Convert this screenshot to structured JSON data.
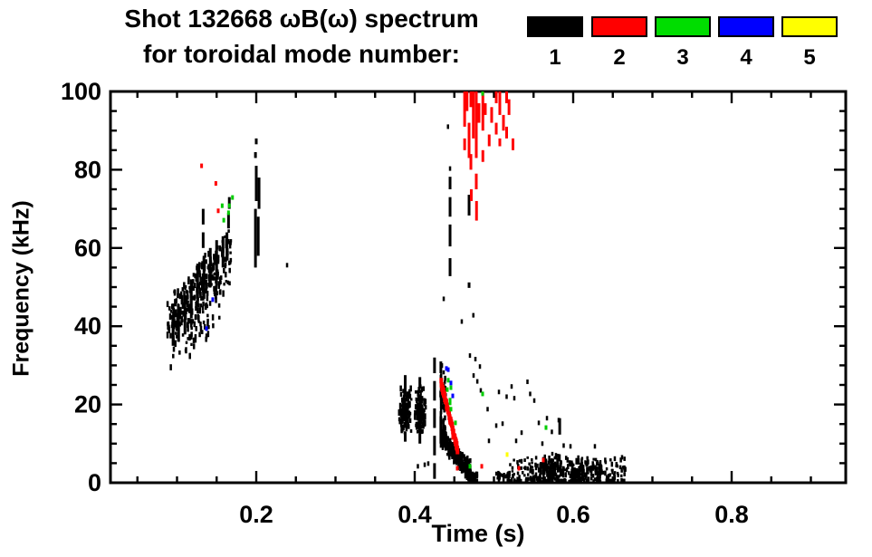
{
  "header": {
    "title": "Shot 132668 ωB(ω) spectrum",
    "subtitle": "for toroidal mode number:"
  },
  "legend": {
    "items": [
      {
        "label": "1",
        "color": "#000000"
      },
      {
        "label": "2",
        "color": "#ff0000"
      },
      {
        "label": "3",
        "color": "#00dd00"
      },
      {
        "label": "4",
        "color": "#0000ff"
      },
      {
        "label": "5",
        "color": "#ffff00"
      }
    ]
  },
  "chart_data": {
    "type": "scatter",
    "title": "Shot 132668 ωB(ω) spectrum for toroidal mode number: 1-5",
    "xlabel": "Time (s)",
    "ylabel": "Frequency (kHz)",
    "grid": false,
    "legend_position": "top-right",
    "x_axis": {
      "range": [
        0.016,
        0.944
      ],
      "major": [
        0.2,
        0.4,
        0.6,
        0.8
      ],
      "major_labels": [
        "0.2",
        "0.4",
        "0.6",
        "0.8"
      ],
      "minor_step": 0.05
    },
    "y_axis": {
      "range": [
        0,
        100
      ],
      "major": [
        0,
        20,
        40,
        60,
        80,
        100
      ],
      "major_labels": [
        "0",
        "20",
        "40",
        "60",
        "80",
        "100"
      ],
      "minor_step": 5
    },
    "series": [
      {
        "name": "n=1",
        "color": "#000000",
        "points": [
          [
            0.2389,
            55.6
          ],
          [
            0.442,
            91
          ],
          [
            0.4446,
            80.3
          ],
          [
            0.4366,
            47
          ],
          [
            0.4594,
            41.2
          ],
          [
            0.474,
            42.8
          ],
          [
            0.4697,
            32.5
          ],
          [
            0.4766,
            31.6
          ],
          [
            0.4823,
            29.7
          ],
          [
            0.4743,
            27.4
          ],
          [
            0.479,
            25.9
          ],
          [
            0.4834,
            23.6
          ],
          [
            0.492,
            18.8
          ],
          [
            0.4937,
            10.7
          ],
          [
            0.5029,
            14.6
          ],
          [
            0.5063,
            23.2
          ],
          [
            0.5109,
            15.1
          ],
          [
            0.516,
            22.0
          ],
          [
            0.5223,
            24.6
          ],
          [
            0.5257,
            21.6
          ],
          [
            0.528,
            10.7
          ],
          [
            0.5349,
            12.8
          ],
          [
            0.5423,
            25.8
          ],
          [
            0.5457,
            22.7
          ],
          [
            0.5509,
            21.0
          ],
          [
            0.5566,
            15.3
          ],
          [
            0.5611,
            10.0
          ],
          [
            0.5669,
            16.5
          ],
          [
            0.5731,
            13.0
          ],
          [
            0.5817,
            16.0
          ],
          [
            0.588,
            9.5
          ],
          [
            0.5623,
            6.0
          ],
          [
            0.5966,
            9.3
          ],
          [
            0.6274,
            9.3
          ],
          [
            0.6617,
            6.5
          ],
          [
            0.4126,
            4.6
          ],
          [
            0.4171,
            4.9
          ],
          [
            0.404,
            4.2
          ]
        ],
        "segments": [
          [
            0.133,
            60,
            64
          ],
          [
            0.133,
            66,
            70
          ],
          [
            0.165,
            65,
            69
          ],
          [
            0.166,
            70,
            73
          ],
          [
            0.199,
            55,
            70
          ],
          [
            0.2,
            72,
            81
          ],
          [
            0.2025,
            58,
            68
          ],
          [
            0.2035,
            70,
            78
          ],
          [
            0.199,
            83,
            84.5
          ],
          [
            0.2,
            86.5,
            88
          ],
          [
            0.4446,
            52.8,
            57.4
          ],
          [
            0.4446,
            60.4,
            66
          ],
          [
            0.4446,
            68,
            73
          ],
          [
            0.4446,
            75,
            78.2
          ],
          [
            0.4686,
            68.3,
            73.6
          ],
          [
            0.4686,
            49.8,
            51.2
          ],
          [
            0.425,
            1,
            5
          ],
          [
            0.425,
            7,
            12
          ],
          [
            0.425,
            14,
            19
          ],
          [
            0.425,
            21,
            26
          ],
          [
            0.425,
            28,
            32
          ],
          [
            0.433,
            10,
            17
          ],
          [
            0.4335,
            19,
            26
          ],
          [
            0.433,
            28,
            31
          ],
          [
            0.583,
            12.3,
            16.5
          ],
          [
            0.388,
            24,
            27.5
          ],
          [
            0.388,
            10.5,
            13
          ],
          [
            0.4065,
            24,
            27
          ],
          [
            0.4065,
            10,
            12.5
          ],
          [
            0.118,
            42,
            52
          ],
          [
            0.126,
            45,
            56
          ],
          [
            0.134,
            47,
            58
          ],
          [
            0.142,
            50,
            60
          ],
          [
            0.15,
            52,
            62
          ],
          [
            0.11,
            38,
            48
          ],
          [
            0.102,
            36,
            45
          ],
          [
            0.158,
            55,
            63
          ],
          [
            0.163,
            57,
            64
          ],
          [
            0.095,
            35,
            42
          ]
        ],
        "bands": [
          {
            "t": [
              0.088,
              0.168
            ],
            "fc": [
              40,
              58
            ],
            "hw": [
              8,
              8
            ],
            "n": 300,
            "seed": 7
          },
          {
            "t": [
              0.092,
              0.155
            ],
            "fc": [
              33,
              44
            ],
            "hw": [
              5,
              6
            ],
            "n": 45,
            "seed": 11
          },
          {
            "t": [
              0.4325,
              0.4395
            ],
            "fc": [
              20,
              20
            ],
            "hw": [
              11,
              11
            ],
            "n": 55,
            "seed": 19
          },
          {
            "t": [
              0.433,
              0.4705
            ],
            "fc": [
              11.5,
              3
            ],
            "hw": [
              2.5,
              3.2
            ],
            "n": 240,
            "seed": 23
          },
          {
            "t": [
              0.467,
              0.479
            ],
            "fc": [
              1.8,
              1.5
            ],
            "hw": [
              1.8,
              1.5
            ],
            "n": 40,
            "seed": 47
          },
          {
            "t": [
              0.558,
              0.586
            ],
            "fc": [
              4,
              4
            ],
            "hw": [
              4,
              4
            ],
            "n": 80,
            "seed": 31
          },
          {
            "t": [
              0.598,
              0.636
            ],
            "fc": [
              3.2,
              3.2
            ],
            "hw": [
              3.4,
              3.4
            ],
            "n": 90,
            "seed": 37
          },
          {
            "t": [
              0.502,
              0.52
            ],
            "fc": [
              1.5,
              1.5
            ],
            "hw": [
              1.5,
              1.5
            ],
            "n": 20,
            "seed": 41
          }
        ],
        "blobs": [
          {
            "tc": 0.388,
            "fc": 18.5,
            "rt": 0.0085,
            "rf": 6.5,
            "n": 130,
            "seed": 13
          },
          {
            "tc": 0.4065,
            "fc": 18.0,
            "rt": 0.008,
            "rf": 7.0,
            "n": 130,
            "seed": 17
          }
        ],
        "floors": [
          {
            "t": [
              0.518,
              0.666
            ],
            "fmax": 6.5,
            "n": 260,
            "seed": 29
          }
        ]
      },
      {
        "name": "n=2",
        "color": "#ff0000",
        "points": [
          [
            0.131,
            81
          ],
          [
            0.149,
            76.5
          ],
          [
            0.152,
            69.5
          ],
          [
            0.4537,
            3.7
          ],
          [
            0.4846,
            4.2
          ],
          [
            0.5314,
            3.7
          ],
          [
            0.5623,
            5.8
          ]
        ],
        "segments": [
          [
            0.463,
            91,
            100
          ],
          [
            0.463,
            85,
            88
          ],
          [
            0.466,
            95,
            100
          ],
          [
            0.4686,
            83,
            92
          ],
          [
            0.4709,
            96,
            100
          ],
          [
            0.4709,
            80,
            84
          ],
          [
            0.4714,
            72,
            75
          ],
          [
            0.474,
            88,
            100
          ],
          [
            0.4777,
            83,
            100
          ],
          [
            0.4777,
            75,
            79
          ],
          [
            0.478,
            67,
            72
          ],
          [
            0.4811,
            92,
            97
          ],
          [
            0.486,
            90,
            100
          ],
          [
            0.486,
            82,
            85
          ],
          [
            0.4891,
            94,
            97
          ],
          [
            0.494,
            86,
            89
          ],
          [
            0.4971,
            92,
            96
          ],
          [
            0.5029,
            97,
            100
          ],
          [
            0.5029,
            89,
            92
          ],
          [
            0.5074,
            94,
            100
          ],
          [
            0.5074,
            86,
            88
          ],
          [
            0.512,
            90,
            94
          ],
          [
            0.516,
            97,
            100
          ],
          [
            0.516,
            88,
            91
          ],
          [
            0.519,
            94,
            98
          ],
          [
            0.524,
            85,
            88
          ],
          [
            0.448,
            11,
            13.5
          ]
        ],
        "slants": [
          {
            "from": [
              0.4335,
              25.5
            ],
            "to": [
              0.454,
              8.5
            ],
            "w": 4,
            "n": 60,
            "seed": 43
          }
        ]
      },
      {
        "name": "n=3",
        "color": "#00cc00",
        "points": [
          [
            0.17,
            72.9
          ],
          [
            0.157,
            70.8
          ],
          [
            0.166,
            70.8
          ],
          [
            0.165,
            69.0
          ],
          [
            0.159,
            67.1
          ],
          [
            0.4857,
            99.5
          ],
          [
            0.4423,
            26.2
          ],
          [
            0.4446,
            21.1
          ],
          [
            0.4457,
            24.3
          ],
          [
            0.4411,
            23.8
          ],
          [
            0.4446,
            20.4
          ],
          [
            0.4457,
            18.8
          ],
          [
            0.4514,
            15.3
          ],
          [
            0.4697,
            4.2
          ],
          [
            0.4857,
            22.7
          ],
          [
            0.5657,
            14.1
          ]
        ]
      },
      {
        "name": "n=4",
        "color": "#0000ff",
        "points": [
          [
            0.1451,
            46.8
          ],
          [
            0.1371,
            39.4
          ],
          [
            0.44,
            29.2
          ],
          [
            0.4423,
            28.9
          ],
          [
            0.4457,
            25.5
          ],
          [
            0.448,
            22.2
          ]
        ]
      },
      {
        "name": "n=5",
        "color": "#ffff00",
        "points": [
          [
            0.5166,
            7.2
          ]
        ]
      }
    ]
  }
}
